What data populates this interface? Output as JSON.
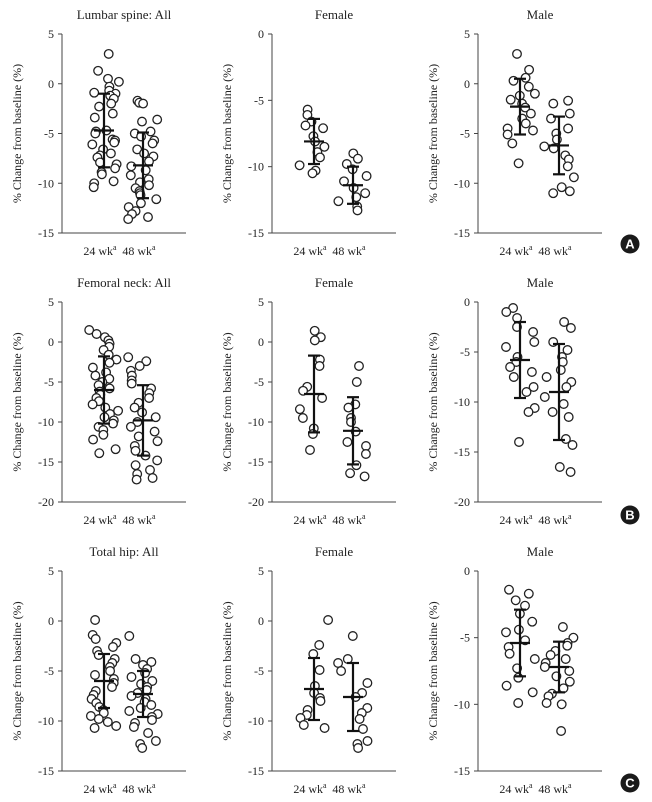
{
  "figure_labels": [
    "A",
    "B",
    "C"
  ],
  "chart_data": [
    {
      "type": "scatter",
      "title": "Lumbar spine: All",
      "ylabel": "% Change from baseline (%)",
      "ylim": [
        -15,
        5
      ],
      "yticks": [
        5,
        0,
        -5,
        -10,
        -15
      ],
      "categories": [
        "24 wk",
        "48 wk"
      ],
      "category_superscript": "a",
      "groups": [
        {
          "category": "24 wk",
          "points": [
            3.0,
            1.3,
            0.5,
            0.2,
            -0.3,
            -0.7,
            -0.9,
            -1.0,
            -1.2,
            -1.5,
            -2.0,
            -2.3,
            -3.0,
            -3.4,
            -4.7,
            -4.8,
            -5.0,
            -5.6,
            -5.7,
            -5.9,
            -6.1,
            -6.6,
            -7.0,
            -7.2,
            -7.4,
            -7.9,
            -8.1,
            -8.5,
            -8.9,
            -9.1,
            -9.8,
            -10.0,
            -10.4
          ],
          "mean": -4.7,
          "sd": 3.7
        },
        {
          "category": "48 wk",
          "points": [
            -1.7,
            -1.9,
            -2.0,
            -3.6,
            -3.8,
            -4.8,
            -5.0,
            -5.3,
            -5.7,
            -6.0,
            -6.6,
            -7.0,
            -7.3,
            -7.8,
            -8.3,
            -8.7,
            -9.2,
            -9.6,
            -9.9,
            -10.2,
            -10.5,
            -10.8,
            -11.0,
            -11.2,
            -11.6,
            -12.0,
            -12.4,
            -12.8,
            -13.1,
            -13.4,
            -13.6
          ],
          "mean": -8.2,
          "sd": 3.3
        }
      ]
    },
    {
      "type": "scatter",
      "title": "Female",
      "ylabel": "% Change from baseline (%)",
      "ylim": [
        -15,
        0
      ],
      "yticks": [
        0,
        -5,
        -10,
        -15
      ],
      "categories": [
        "24 wk",
        "48 wk"
      ],
      "category_superscript": "a",
      "groups": [
        {
          "category": "24 wk",
          "points": [
            -5.7,
            -6.1,
            -6.6,
            -6.9,
            -7.1,
            -7.7,
            -8.1,
            -8.5,
            -8.9,
            -9.3,
            -9.9,
            -10.3,
            -10.5
          ],
          "mean": -8.1,
          "sd": 1.7
        },
        {
          "category": "48 wk",
          "points": [
            -9.0,
            -9.4,
            -9.8,
            -10.2,
            -10.7,
            -11.1,
            -11.6,
            -12.0,
            -12.3,
            -12.6,
            -13.0,
            -13.3
          ],
          "mean": -11.4,
          "sd": 1.4
        }
      ]
    },
    {
      "type": "scatter",
      "title": "Male",
      "ylabel": "% Change from baseline (%)",
      "ylim": [
        -15,
        5
      ],
      "yticks": [
        5,
        0,
        -5,
        -10,
        -15
      ],
      "categories": [
        "24 wk",
        "48 wk"
      ],
      "category_superscript": "a",
      "groups": [
        {
          "category": "24 wk",
          "points": [
            3.0,
            1.4,
            0.6,
            0.3,
            -0.3,
            -1.0,
            -1.2,
            -1.6,
            -2.0,
            -2.4,
            -3.0,
            -3.5,
            -4.0,
            -4.5,
            -4.7,
            -5.1,
            -6.0,
            -8.0
          ],
          "mean": -2.3,
          "sd": 2.8
        },
        {
          "category": "48 wk",
          "points": [
            -1.7,
            -2.0,
            -3.0,
            -3.5,
            -4.5,
            -5.0,
            -5.6,
            -6.3,
            -6.5,
            -7.2,
            -7.6,
            -8.3,
            -9.4,
            -10.4,
            -10.8,
            -11.0
          ],
          "mean": -6.2,
          "sd": 2.9
        }
      ]
    },
    {
      "type": "scatter",
      "title": "Femoral neck: All",
      "ylabel": "% Change from baseline (%)",
      "ylim": [
        -20,
        5
      ],
      "yticks": [
        5,
        0,
        -5,
        -10,
        -15,
        -20
      ],
      "categories": [
        "24 wk",
        "48 wk"
      ],
      "category_superscript": "a",
      "groups": [
        {
          "category": "24 wk",
          "points": [
            1.5,
            1.0,
            0.6,
            0.2,
            -0.2,
            -0.6,
            -1.0,
            -1.6,
            -2.2,
            -2.6,
            -3.2,
            -3.8,
            -4.2,
            -4.6,
            -5.0,
            -5.4,
            -5.8,
            -6.2,
            -6.6,
            -7.0,
            -7.4,
            -7.8,
            -8.2,
            -8.6,
            -9.0,
            -9.4,
            -9.8,
            -10.2,
            -10.6,
            -11.0,
            -11.6,
            -12.2,
            -13.4,
            -13.9
          ],
          "mean": -6.0,
          "sd": 4.2
        },
        {
          "category": "48 wk",
          "points": [
            -1.9,
            -2.4,
            -3.0,
            -3.6,
            -4.2,
            -4.8,
            -5.2,
            -5.8,
            -6.4,
            -7.0,
            -7.6,
            -8.2,
            -8.8,
            -9.4,
            -10.0,
            -10.6,
            -11.2,
            -11.8,
            -12.4,
            -13.0,
            -13.6,
            -14.2,
            -14.8,
            -15.4,
            -16.0,
            -16.5,
            -17.0,
            -17.2
          ],
          "mean": -9.8,
          "sd": 4.4
        }
      ]
    },
    {
      "type": "scatter",
      "title": "Female",
      "ylabel": "% Change from baseline (%)",
      "ylim": [
        -20,
        5
      ],
      "yticks": [
        5,
        0,
        -5,
        -10,
        -15,
        -20
      ],
      "categories": [
        "24 wk",
        "48 wk"
      ],
      "category_superscript": "a",
      "groups": [
        {
          "category": "24 wk",
          "points": [
            1.4,
            0.6,
            0.2,
            -2.2,
            -3.0,
            -5.6,
            -6.1,
            -7.0,
            -8.4,
            -9.5,
            -10.8,
            -11.5,
            -13.5
          ],
          "mean": -6.5,
          "sd": 4.8
        },
        {
          "category": "48 wk",
          "points": [
            -3.0,
            -5.0,
            -7.8,
            -8.2,
            -9.5,
            -10.0,
            -11.2,
            -12.5,
            -13.0,
            -14.0,
            -15.4,
            -16.4,
            -16.8
          ],
          "mean": -11.1,
          "sd": 4.2
        }
      ]
    },
    {
      "type": "scatter",
      "title": "Male",
      "ylabel": "% Change from baseline (%)",
      "ylim": [
        -20,
        0
      ],
      "yticks": [
        0,
        -5,
        -10,
        -15,
        -20
      ],
      "categories": [
        "24 wk",
        "48 wk"
      ],
      "category_superscript": "a",
      "groups": [
        {
          "category": "24 wk",
          "points": [
            -0.6,
            -1.0,
            -1.6,
            -2.5,
            -3.0,
            -4.0,
            -4.5,
            -5.5,
            -6.0,
            -6.5,
            -7.0,
            -7.5,
            -8.5,
            -9.0,
            -10.6,
            -11.0,
            -14.0
          ],
          "mean": -5.8,
          "sd": 3.8
        },
        {
          "category": "48 wk",
          "points": [
            -2.0,
            -2.6,
            -4.0,
            -4.8,
            -5.5,
            -6.0,
            -6.8,
            -7.5,
            -8.0,
            -8.5,
            -9.5,
            -10.2,
            -11.0,
            -11.5,
            -13.7,
            -14.3,
            -16.5,
            -17.0
          ],
          "mean": -9.0,
          "sd": 4.8
        }
      ]
    },
    {
      "type": "scatter",
      "title": "Total hip: All",
      "ylabel": "% Change from baseline (%)",
      "ylim": [
        -15,
        5
      ],
      "yticks": [
        5,
        0,
        -5,
        -10,
        -15
      ],
      "categories": [
        "24 wk",
        "48 wk"
      ],
      "category_superscript": "a",
      "groups": [
        {
          "category": "24 wk",
          "points": [
            0.1,
            -1.4,
            -1.8,
            -2.2,
            -2.6,
            -3.0,
            -3.4,
            -3.8,
            -4.2,
            -4.6,
            -5.0,
            -5.4,
            -5.8,
            -6.2,
            -6.6,
            -7.0,
            -7.4,
            -7.8,
            -8.2,
            -8.6,
            -8.9,
            -9.2,
            -9.5,
            -9.8,
            -10.1,
            -10.5,
            -10.7
          ],
          "mean": -6.0,
          "sd": 2.7
        },
        {
          "category": "48 wk",
          "points": [
            -1.5,
            -3.8,
            -4.1,
            -4.4,
            -4.8,
            -5.2,
            -5.6,
            -6.0,
            -6.3,
            -6.6,
            -6.9,
            -7.2,
            -7.5,
            -7.8,
            -8.1,
            -8.4,
            -8.7,
            -9.0,
            -9.3,
            -9.6,
            -9.9,
            -10.2,
            -10.6,
            -11.2,
            -12.0,
            -12.3,
            -12.7
          ],
          "mean": -7.3,
          "sd": 2.3
        }
      ]
    },
    {
      "type": "scatter",
      "title": "Female",
      "ylabel": "% Change from baseline (%)",
      "ylim": [
        -15,
        5
      ],
      "yticks": [
        5,
        0,
        -5,
        -10,
        -15
      ],
      "categories": [
        "24 wk",
        "48 wk"
      ],
      "category_superscript": "a",
      "groups": [
        {
          "category": "24 wk",
          "points": [
            0.1,
            -2.4,
            -3.3,
            -4.9,
            -6.5,
            -7.2,
            -7.7,
            -8.0,
            -8.9,
            -9.4,
            -9.7,
            -10.4,
            -10.7
          ],
          "mean": -6.8,
          "sd": 3.1
        },
        {
          "category": "48 wk",
          "points": [
            -1.5,
            -3.8,
            -4.2,
            -5.0,
            -6.2,
            -7.2,
            -7.6,
            -8.7,
            -9.2,
            -9.8,
            -10.8,
            -12.0,
            -12.3,
            -12.7
          ],
          "mean": -7.6,
          "sd": 3.4
        }
      ]
    },
    {
      "type": "scatter",
      "title": "Male",
      "ylabel": "% Change from baseline (%)",
      "ylim": [
        -15,
        0
      ],
      "yticks": [
        0,
        -5,
        -10,
        -15
      ],
      "categories": [
        "24 wk",
        "48 wk"
      ],
      "category_superscript": "a",
      "groups": [
        {
          "category": "24 wk",
          "points": [
            -1.4,
            -1.7,
            -2.2,
            -2.6,
            -3.2,
            -3.8,
            -4.4,
            -4.6,
            -5.2,
            -5.7,
            -6.2,
            -6.6,
            -7.3,
            -8.0,
            -8.6,
            -9.1,
            -9.9
          ],
          "mean": -5.4,
          "sd": 2.5
        },
        {
          "category": "48 wk",
          "points": [
            -4.2,
            -5.0,
            -5.4,
            -5.6,
            -6.0,
            -6.3,
            -6.6,
            -6.9,
            -7.2,
            -7.5,
            -7.9,
            -8.3,
            -8.8,
            -9.2,
            -9.4,
            -9.9,
            -10.0,
            -12.0
          ],
          "mean": -7.2,
          "sd": 1.9
        }
      ]
    }
  ]
}
